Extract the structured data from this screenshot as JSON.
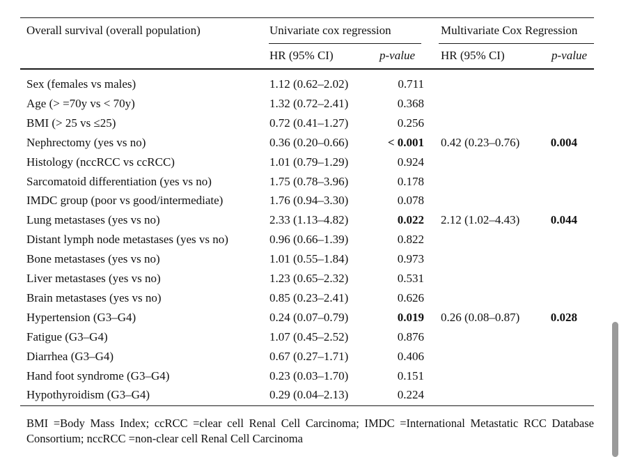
{
  "header": {
    "first_col": "Overall survival (overall population)",
    "univariate": "Univariate cox regression",
    "multivariate": "Multivariate Cox Regression",
    "hr_label": "HR (95% CI)",
    "p_label": "p-value"
  },
  "rows": [
    {
      "label": "Sex (females vs males)",
      "uni_hr": "1.12 (0.62–2.02)",
      "uni_p": "0.711",
      "uni_p_bold": false,
      "multi_hr": "",
      "multi_p": ""
    },
    {
      "label": "Age (> =70y vs < 70y)",
      "uni_hr": "1.32 (0.72–2.41)",
      "uni_p": "0.368",
      "uni_p_bold": false,
      "multi_hr": "",
      "multi_p": ""
    },
    {
      "label": "BMI (> 25 vs ≤25)",
      "uni_hr": "0.72 (0.41–1.27)",
      "uni_p": "0.256",
      "uni_p_bold": false,
      "multi_hr": "",
      "multi_p": ""
    },
    {
      "label": "Nephrectomy (yes vs no)",
      "uni_hr": "0.36 (0.20–0.66)",
      "uni_p": "< 0.001",
      "uni_p_bold": true,
      "multi_hr": "0.42 (0.23–0.76)",
      "multi_p": "0.004"
    },
    {
      "label": "Histology (nccRCC vs ccRCC)",
      "uni_hr": "1.01 (0.79–1.29)",
      "uni_p": "0.924",
      "uni_p_bold": false,
      "multi_hr": "",
      "multi_p": ""
    },
    {
      "label": "Sarcomatoid differentiation (yes vs no)",
      "uni_hr": "1.75 (0.78–3.96)",
      "uni_p": "0.178",
      "uni_p_bold": false,
      "multi_hr": "",
      "multi_p": ""
    },
    {
      "label": "IMDC group (poor vs good/intermediate)",
      "uni_hr": "1.76 (0.94–3.30)",
      "uni_p": "0.078",
      "uni_p_bold": false,
      "multi_hr": "",
      "multi_p": ""
    },
    {
      "label": "Lung metastases (yes vs no)",
      "uni_hr": "2.33 (1.13–4.82)",
      "uni_p": "0.022",
      "uni_p_bold": true,
      "multi_hr": "2.12 (1.02–4.43)",
      "multi_p": "0.044"
    },
    {
      "label": "Distant lymph node metastases (yes vs no)",
      "uni_hr": "0.96 (0.66–1.39)",
      "uni_p": "0.822",
      "uni_p_bold": false,
      "multi_hr": "",
      "multi_p": ""
    },
    {
      "label": "Bone metastases (yes vs no)",
      "uni_hr": "1.01 (0.55–1.84)",
      "uni_p": "0.973",
      "uni_p_bold": false,
      "multi_hr": "",
      "multi_p": ""
    },
    {
      "label": "Liver metastases (yes vs no)",
      "uni_hr": "1.23 (0.65–2.32)",
      "uni_p": "0.531",
      "uni_p_bold": false,
      "multi_hr": "",
      "multi_p": ""
    },
    {
      "label": "Brain metastases (yes vs no)",
      "uni_hr": "0.85 (0.23–2.41)",
      "uni_p": "0.626",
      "uni_p_bold": false,
      "multi_hr": "",
      "multi_p": ""
    },
    {
      "label": "Hypertension (G3–G4)",
      "uni_hr": "0.24 (0.07–0.79)",
      "uni_p": "0.019",
      "uni_p_bold": true,
      "multi_hr": "0.26 (0.08–0.87)",
      "multi_p": "0.028"
    },
    {
      "label": "Fatigue (G3–G4)",
      "uni_hr": "1.07 (0.45–2.52)",
      "uni_p": "0.876",
      "uni_p_bold": false,
      "multi_hr": "",
      "multi_p": ""
    },
    {
      "label": "Diarrhea (G3–G4)",
      "uni_hr": "0.67 (0.27–1.71)",
      "uni_p": "0.406",
      "uni_p_bold": false,
      "multi_hr": "",
      "multi_p": ""
    },
    {
      "label": "Hand foot syndrome (G3–G4)",
      "uni_hr": "0.23 (0.03–1.70)",
      "uni_p": "0.151",
      "uni_p_bold": false,
      "multi_hr": "",
      "multi_p": ""
    },
    {
      "label": "Hypothyroidism (G3–G4)",
      "uni_hr": "0.29 (0.04–2.13)",
      "uni_p": "0.224",
      "uni_p_bold": false,
      "multi_hr": "",
      "multi_p": ""
    }
  ],
  "footnote": "BMI =Body Mass Index; ccRCC =clear cell Renal Cell Carcinoma; IMDC =International Metastatic RCC Database Consortium; nccRCC =non-clear cell Renal Cell Carcinoma"
}
